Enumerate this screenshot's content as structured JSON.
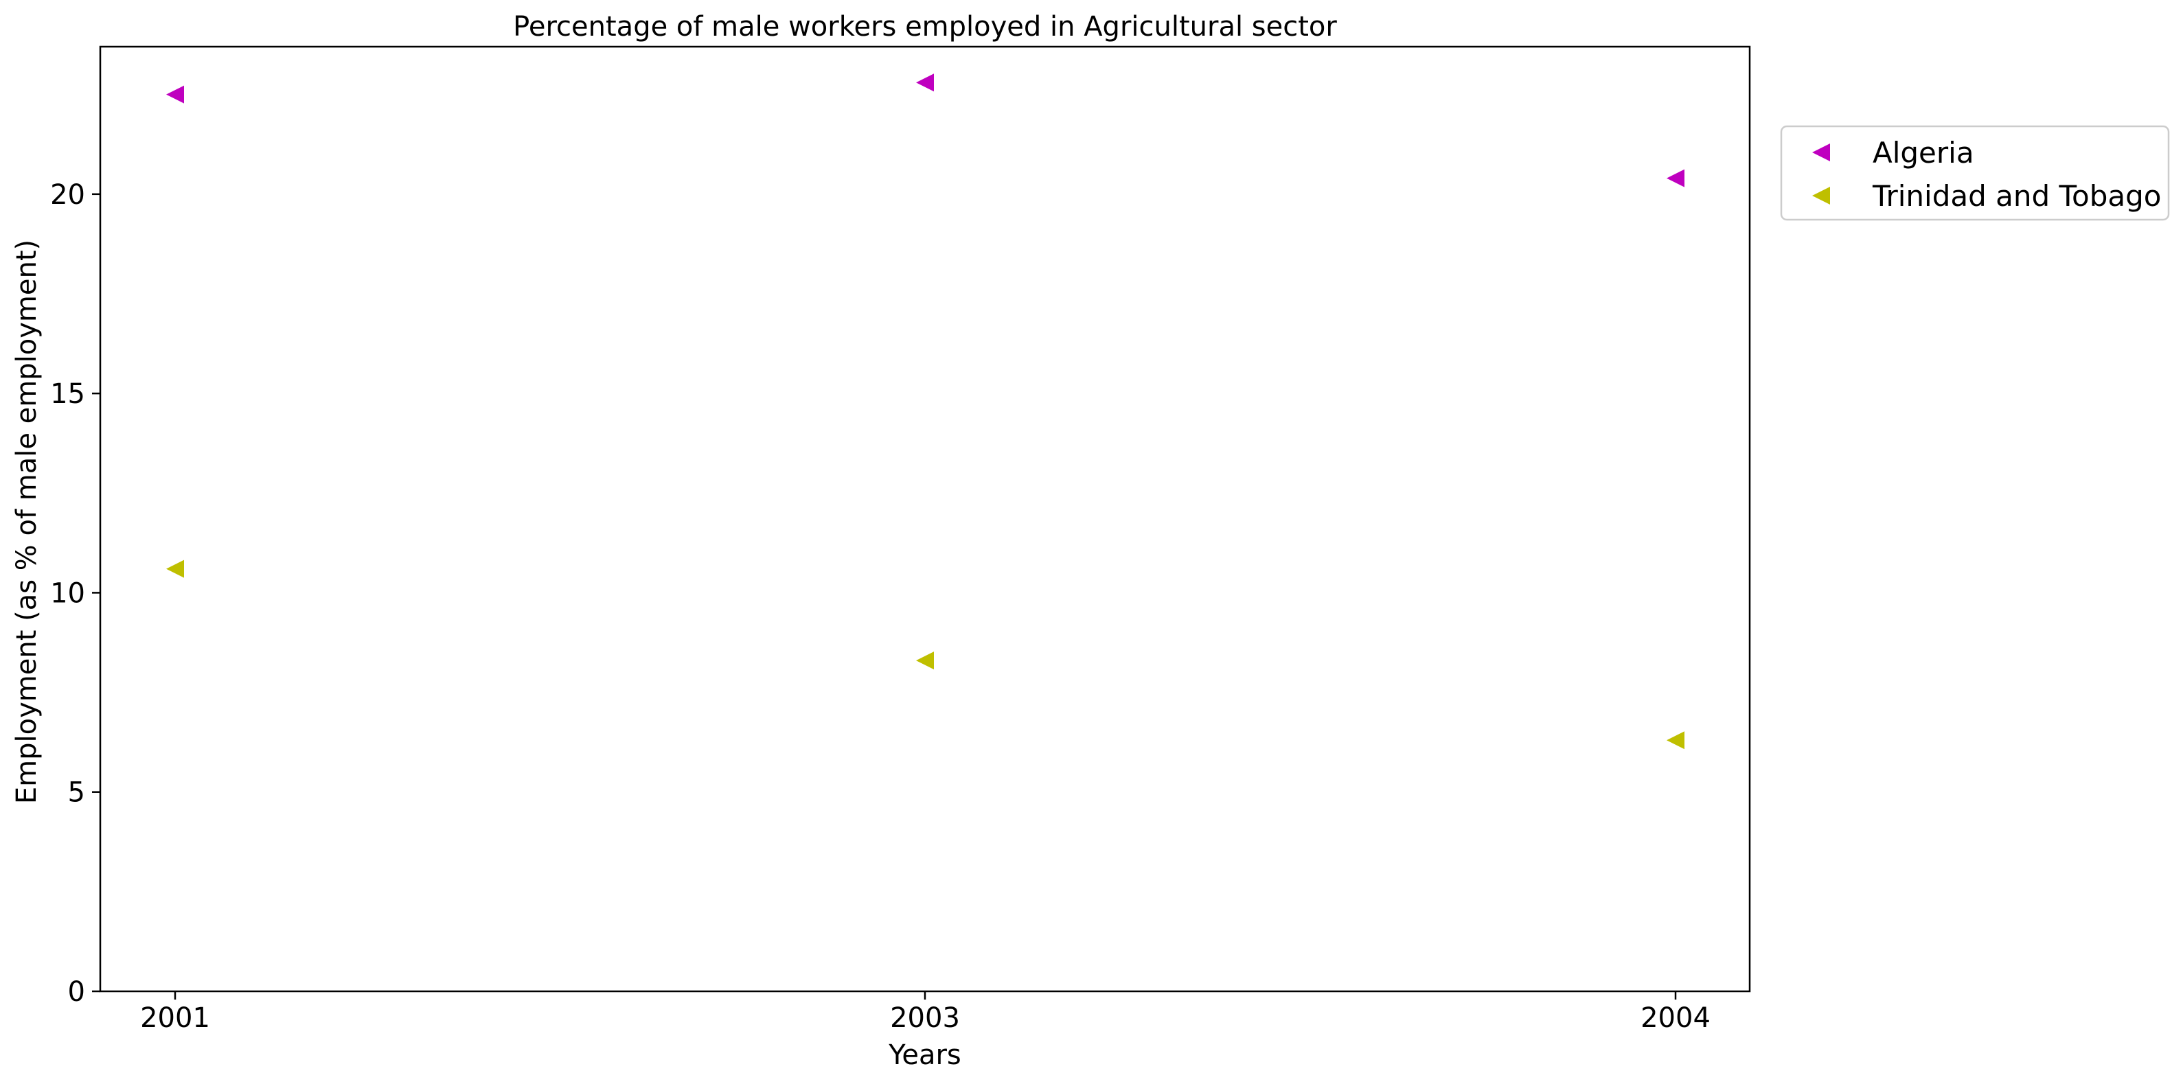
{
  "chart_data": {
    "type": "scatter",
    "title": "Percentage of male workers employed in Agricultural sector",
    "xlabel": "Years",
    "ylabel": "Employment (as % of male employment)",
    "categories": [
      "2001",
      "2003",
      "2004"
    ],
    "ylim": [
      0,
      23.7
    ],
    "yticks": [
      "0",
      "5",
      "10",
      "15",
      "20"
    ],
    "grid": false,
    "legend_position": "outside-top-right",
    "marker": "triangle-left",
    "series": [
      {
        "name": "Algeria",
        "color": "#bf00bf",
        "values": [
          22.5,
          22.8,
          20.4
        ]
      },
      {
        "name": "Trinidad and Tobago",
        "color": "#bfbf00",
        "values": [
          10.6,
          8.3,
          6.3
        ]
      }
    ]
  }
}
